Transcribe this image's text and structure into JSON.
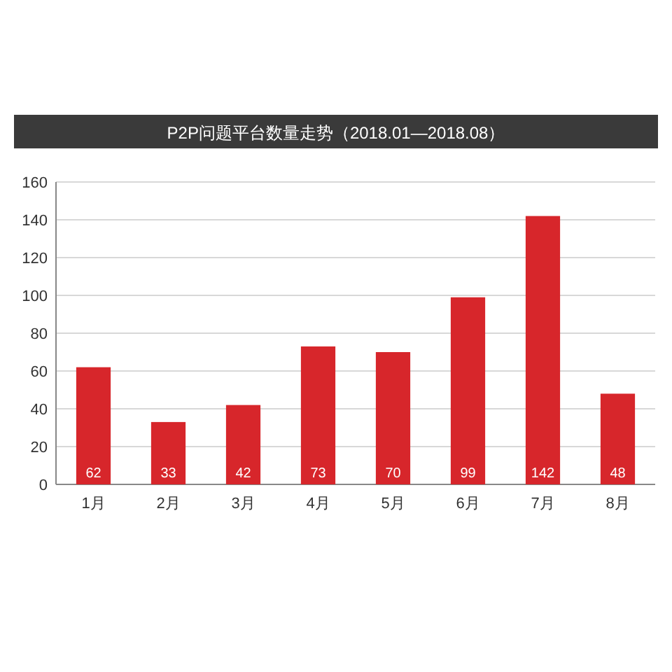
{
  "chart_data": {
    "type": "bar",
    "title": "P2P问题平台数量走势（2018.01—2018.08）",
    "categories": [
      "1月",
      "2月",
      "3月",
      "4月",
      "5月",
      "6月",
      "7月",
      "8月"
    ],
    "values": [
      62,
      33,
      42,
      73,
      70,
      99,
      142,
      48
    ],
    "color": "#d7262b",
    "ylim": [
      0,
      160
    ],
    "yticks": [
      0,
      20,
      40,
      60,
      80,
      100,
      120,
      140,
      160
    ],
    "grid": "y",
    "data_labels": true
  }
}
